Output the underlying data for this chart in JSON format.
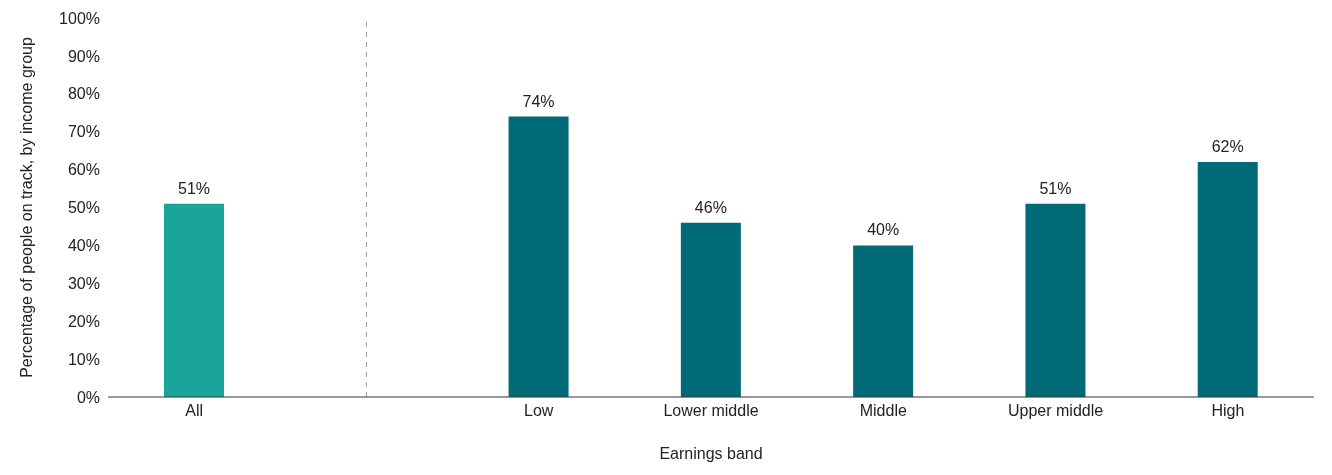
{
  "chart_data": {
    "type": "bar",
    "xlabel": "Earnings band",
    "ylabel": "Percentage of people on track, by income group",
    "categories": [
      "All",
      null,
      "Low",
      "Lower middle",
      "Middle",
      "Upper middle",
      "High"
    ],
    "values": [
      51,
      null,
      74,
      46,
      40,
      51,
      62
    ],
    "colors": [
      "#1aa59c",
      null,
      "#006b77",
      "#006b77",
      "#006b77",
      "#006b77",
      "#006b77"
    ],
    "value_labels": [
      "51%",
      null,
      "74%",
      "46%",
      "40%",
      "51%",
      "62%"
    ],
    "ylim": [
      0,
      100
    ],
    "yticks": [
      {
        "value": 0,
        "label": "0%"
      },
      {
        "value": 10,
        "label": "10%"
      },
      {
        "value": 20,
        "label": "20%"
      },
      {
        "value": 30,
        "label": "30%"
      },
      {
        "value": 40,
        "label": "40%"
      },
      {
        "value": 50,
        "label": "50%"
      },
      {
        "value": 60,
        "label": "60%"
      },
      {
        "value": 70,
        "label": "70%"
      },
      {
        "value": 80,
        "label": "80%"
      },
      {
        "value": 90,
        "label": "90%"
      },
      {
        "value": 100,
        "label": "100%"
      }
    ],
    "ref_lines": [
      {
        "axis": "x",
        "color": "#999999",
        "line_style": "dashed"
      }
    ],
    "legend": false
  }
}
